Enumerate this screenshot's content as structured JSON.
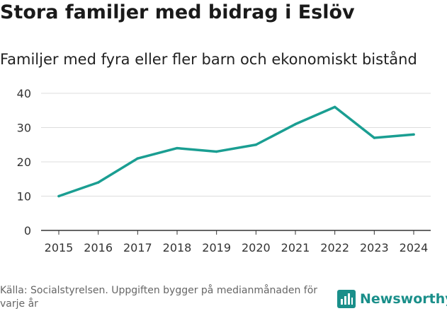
{
  "title": "Stora familjer med bidrag i Eslöv",
  "subtitle": "Familjer med fyra eller fler barn och ekonomiskt bistånd",
  "source": "Källa: Socialstyrelsen. Uppgiften bygger på medianmånaden för varje år",
  "logo": {
    "text": "Newsworthy",
    "icon": "newsworthy-logo-icon"
  },
  "colors": {
    "line": "#1a9e92",
    "grid": "#dddddd",
    "axis": "#333333",
    "logo": "#1a8f8a"
  },
  "chart_data": {
    "type": "line",
    "title": "Stora familjer med bidrag i Eslöv",
    "subtitle": "Familjer med fyra eller fler barn och ekonomiskt bistånd",
    "xlabel": "",
    "ylabel": "",
    "x": [
      "2015",
      "2016",
      "2017",
      "2018",
      "2019",
      "2020",
      "2021",
      "2022",
      "2023",
      "2024"
    ],
    "series": [
      {
        "name": "Familjer",
        "values": [
          10,
          14,
          21,
          24,
          23,
          25,
          31,
          36,
          27,
          28
        ]
      }
    ],
    "ylim": [
      0,
      40
    ],
    "yticks": [
      0,
      10,
      20,
      30,
      40
    ],
    "grid": true,
    "legend": "none"
  }
}
